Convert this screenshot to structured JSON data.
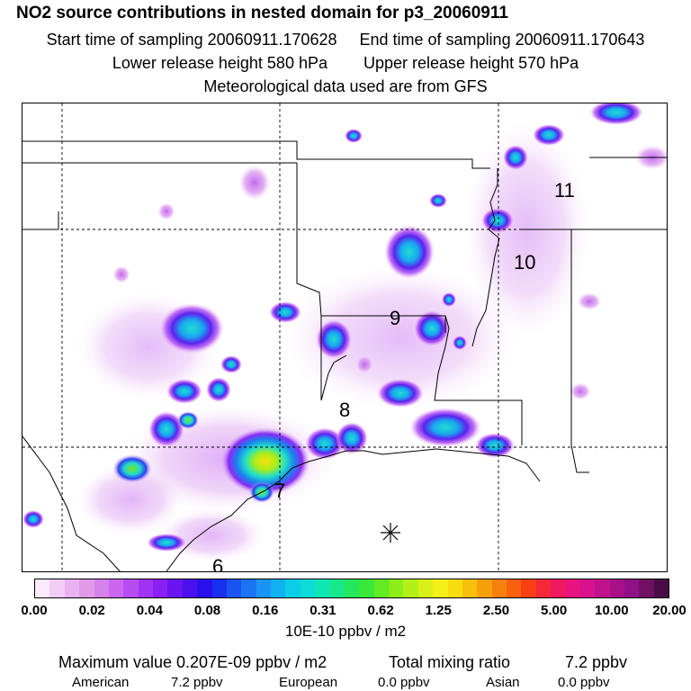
{
  "header": {
    "title": "NO2 source contributions in nested domain for p3_20060911",
    "sampling_start": "Start time of sampling 20060911.170628",
    "sampling_end": "End time of sampling 20060911.170643",
    "lower_release": "Lower release height  580 hPa",
    "upper_release": "Upper release height  570 hPa",
    "met_data": "Meteorological data used are from GFS"
  },
  "map": {
    "labels": [
      "11",
      "10",
      "9",
      "8",
      "7",
      "6"
    ],
    "release_marker_icon": "asterisk-icon"
  },
  "colorbar": {
    "ticks": [
      "0.00",
      "0.02",
      "0.04",
      "0.08",
      "0.16",
      "0.31",
      "0.62",
      "1.25",
      "2.50",
      "5.00",
      "10.00",
      "20.00"
    ],
    "colors": [
      "#fbeafb",
      "#f4cdf4",
      "#eab2f0",
      "#e09ae8",
      "#d682ec",
      "#cc66f0",
      "#b84cf2",
      "#a033f5",
      "#8a20f5",
      "#6a15f0",
      "#4a10ee",
      "#2a10ee",
      "#1830f0",
      "#1a55f2",
      "#1a75f5",
      "#1a95f5",
      "#10b2f0",
      "#0ccde8",
      "#0cdcd8",
      "#10e6b4",
      "#18e88a",
      "#22e85a",
      "#3ae83a",
      "#62ea22",
      "#8ced18",
      "#b2f018",
      "#d8f018",
      "#f4f018",
      "#f8dc10",
      "#f8c00c",
      "#f8a00c",
      "#f8800c",
      "#f8600c",
      "#f84014",
      "#f42838",
      "#f01860",
      "#e81280",
      "#d8128e",
      "#c0128c",
      "#a8108a",
      "#901088",
      "#701062",
      "#4a0c48"
    ],
    "units": "10E-10 ppbv / m2"
  },
  "summary": {
    "max_value": "Maximum value  0.207E-09 ppbv / m2",
    "total_label": "Total mixing ratio",
    "total_value": "7.2 ppbv",
    "american_label": "American",
    "american_value": "7.2 ppbv",
    "european_label": "European",
    "european_value": "0.0 ppbv",
    "asian_label": "Asian",
    "asian_value": "0.0 ppbv"
  }
}
